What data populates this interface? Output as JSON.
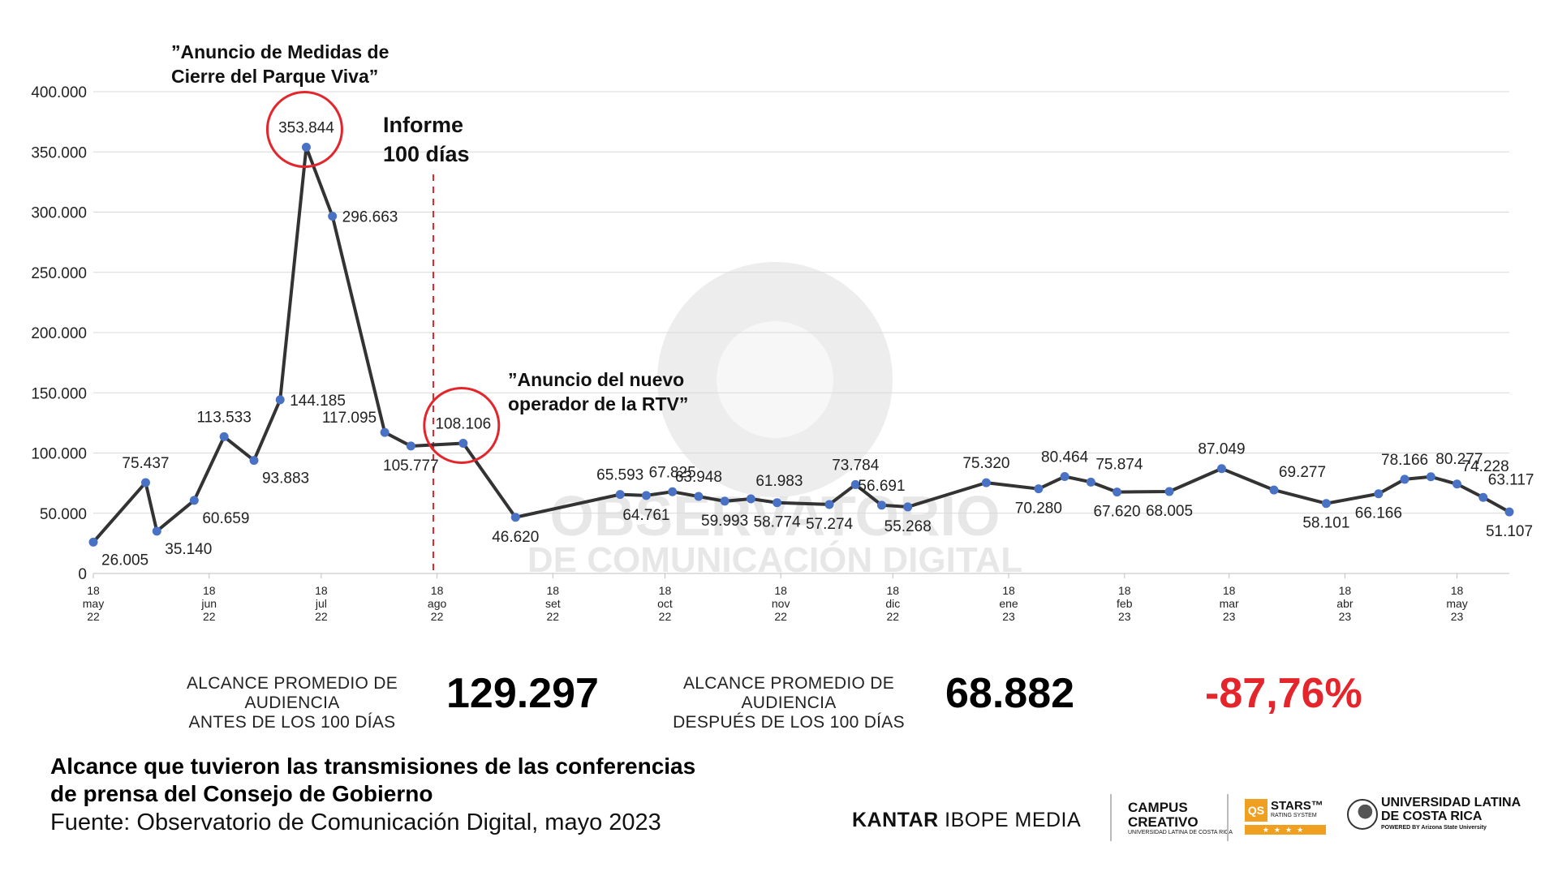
{
  "chart_data": {
    "type": "line",
    "title": "",
    "xlabel": "",
    "ylabel": "",
    "ylim": [
      0,
      400000
    ],
    "y_ticks": [
      "400.000",
      "350.000",
      "300.000",
      "250.000",
      "200.000",
      "150.000",
      "100.000",
      "50.000",
      "0"
    ],
    "x_ticks": [
      {
        "label": [
          "18",
          "may",
          "22"
        ],
        "date": "2022-05-18"
      },
      {
        "label": [
          "18",
          "jun",
          "22"
        ],
        "date": "2022-06-18"
      },
      {
        "label": [
          "18",
          "jul",
          "22"
        ],
        "date": "2022-07-18"
      },
      {
        "label": [
          "18",
          "ago",
          "22"
        ],
        "date": "2022-08-18"
      },
      {
        "label": [
          "18",
          "set",
          "22"
        ],
        "date": "2022-09-18"
      },
      {
        "label": [
          "18",
          "oct",
          "22"
        ],
        "date": "2022-10-18"
      },
      {
        "label": [
          "18",
          "nov",
          "22"
        ],
        "date": "2022-11-18"
      },
      {
        "label": [
          "18",
          "dic",
          "22"
        ],
        "date": "2022-12-18"
      },
      {
        "label": [
          "18",
          "ene",
          "23"
        ],
        "date": "2023-01-18"
      },
      {
        "label": [
          "18",
          "feb",
          "23"
        ],
        "date": "2023-02-18"
      },
      {
        "label": [
          "18",
          "mar",
          "23"
        ],
        "date": "2023-03-18"
      },
      {
        "label": [
          "18",
          "abr",
          "23"
        ],
        "date": "2023-04-18"
      },
      {
        "label": [
          "18",
          "may",
          "23"
        ],
        "date": "2023-05-18"
      }
    ],
    "series": [
      {
        "color": "#333333",
        "marker_color": "#4a72c4",
        "points": [
          {
            "date": "2022-05-18",
            "value": 26005,
            "label": "26.005",
            "label_pos": "below-right"
          },
          {
            "date": "2022-06-01",
            "value": 75437,
            "label": "75.437",
            "label_pos": "above"
          },
          {
            "date": "2022-06-04",
            "value": 35140,
            "label": "35.140",
            "label_pos": "below-right"
          },
          {
            "date": "2022-06-14",
            "value": 60659,
            "label": "60.659",
            "label_pos": "below-right"
          },
          {
            "date": "2022-06-22",
            "value": 113533,
            "label": "113.533",
            "label_pos": "above"
          },
          {
            "date": "2022-06-30",
            "value": 93883,
            "label": "93.883",
            "label_pos": "below-right"
          },
          {
            "date": "2022-07-07",
            "value": 144185,
            "label": "144.185",
            "label_pos": "right"
          },
          {
            "date": "2022-07-14",
            "value": 353844,
            "label": "353.844",
            "label_pos": "above"
          },
          {
            "date": "2022-07-21",
            "value": 296663,
            "label": "296.663",
            "label_pos": "right"
          },
          {
            "date": "2022-08-04",
            "value": 117095,
            "label": "117.095",
            "label_pos": "left"
          },
          {
            "date": "2022-08-11",
            "value": 105777,
            "label": "105.777",
            "label_pos": "below"
          },
          {
            "date": "2022-08-25",
            "value": 108106,
            "label": "108.106",
            "label_pos": "above"
          },
          {
            "date": "2022-09-08",
            "value": 46620,
            "label": "46.620",
            "label_pos": "below"
          },
          {
            "date": "2022-10-06",
            "value": 65593,
            "label": "65.593",
            "label_pos": "above"
          },
          {
            "date": "2022-10-13",
            "value": 64761,
            "label": "64.761",
            "label_pos": "below"
          },
          {
            "date": "2022-10-20",
            "value": 67825,
            "label": "67.825",
            "label_pos": "above"
          },
          {
            "date": "2022-10-27",
            "value": 63948,
            "label": "63.948",
            "label_pos": "above"
          },
          {
            "date": "2022-11-03",
            "value": 59993,
            "label": "59.993",
            "label_pos": "below"
          },
          {
            "date": "2022-11-10",
            "value": 61983,
            "label": "61.983",
            "label_pos": "above-right"
          },
          {
            "date": "2022-11-17",
            "value": 58774,
            "label": "58.774",
            "label_pos": "below"
          },
          {
            "date": "2022-12-01",
            "value": 57274,
            "label": "57.274",
            "label_pos": "below"
          },
          {
            "date": "2022-12-08",
            "value": 73784,
            "label": "73.784",
            "label_pos": "above"
          },
          {
            "date": "2022-12-15",
            "value": 56691,
            "label": "56.691",
            "label_pos": "above"
          },
          {
            "date": "2022-12-22",
            "value": 55268,
            "label": "55.268",
            "label_pos": "below"
          },
          {
            "date": "2023-01-12",
            "value": 75320,
            "label": "75.320",
            "label_pos": "above"
          },
          {
            "date": "2023-01-26",
            "value": 70280,
            "label": "70.280",
            "label_pos": "below"
          },
          {
            "date": "2023-02-02",
            "value": 80464,
            "label": "80.464",
            "label_pos": "above"
          },
          {
            "date": "2023-02-09",
            "value": 75874,
            "label": "75.874",
            "label_pos": "above-right"
          },
          {
            "date": "2023-02-16",
            "value": 67620,
            "label": "67.620",
            "label_pos": "below"
          },
          {
            "date": "2023-03-02",
            "value": 68005,
            "label": "68.005",
            "label_pos": "below"
          },
          {
            "date": "2023-03-16",
            "value": 87049,
            "label": "87.049",
            "label_pos": "above"
          },
          {
            "date": "2023-03-30",
            "value": 69277,
            "label": "69.277",
            "label_pos": "above-right"
          },
          {
            "date": "2023-04-13",
            "value": 58101,
            "label": "58.101",
            "label_pos": "below"
          },
          {
            "date": "2023-04-27",
            "value": 66166,
            "label": "66.166",
            "label_pos": "below"
          },
          {
            "date": "2023-05-04",
            "value": 78166,
            "label": "78.166",
            "label_pos": "above"
          },
          {
            "date": "2023-05-11",
            "value": 80277,
            "label": "80.277",
            "label_pos": "above-right"
          },
          {
            "date": "2023-05-18",
            "value": 74228,
            "label": "74.228",
            "label_pos": "above-right"
          },
          {
            "date": "2023-05-25",
            "value": 63117,
            "label": "63.117",
            "label_pos": "above-right"
          },
          {
            "date": "2023-06-01",
            "value": 51107,
            "label": "51.107",
            "label_pos": "below"
          }
        ]
      }
    ],
    "vertical_marker": {
      "date": "2022-08-17",
      "label_lines": [
        "Informe",
        "100 días"
      ],
      "color": "#e4262c",
      "style": "dashed"
    },
    "annotations": [
      {
        "lines": [
          "”Anuncio de Medidas de",
          "Cierre del Parque Viva”"
        ],
        "target_date": "2022-07-14"
      },
      {
        "lines": [
          "”Anuncio del nuevo",
          "operador de la RTV”"
        ],
        "target_date": "2022-08-25"
      }
    ],
    "highlight_circles": [
      {
        "date": "2022-07-14",
        "value": 353844,
        "color": "#e4262c"
      },
      {
        "date": "2022-08-25",
        "value": 108106,
        "color": "#e4262c"
      }
    ],
    "watermark": {
      "lines": [
        "OBSERVATORIO",
        "DE COMUNICACIÓN DIGITAL"
      ]
    },
    "grid": "horizontal"
  },
  "stats": {
    "before_label_1": "ALCANCE PROMEDIO DE AUDIENCIA",
    "before_label_2": "ANTES DE LOS 100 DÍAS",
    "before_value": "129.297",
    "after_label_1": "ALCANCE PROMEDIO DE AUDIENCIA",
    "after_label_2": "DESPUÉS DE LOS 100 DÍAS",
    "after_value": "68.882",
    "change": "-87,76%"
  },
  "footer": {
    "title_1": "Alcance que tuvieron las transmisiones de las conferencias",
    "title_2": "de prensa del Consejo de Gobierno",
    "source": "Fuente: Observatorio de Comunicación Digital, mayo 2023"
  },
  "logos": {
    "kantar_bold": "KANTAR",
    "kantar_rest": "IBOPE MEDIA",
    "campus_1": "CAMPUS",
    "campus_2": "CREATIVO",
    "campus_sub": "UNIVERSIDAD LATINA DE COSTA RICA",
    "qs_box": "QS",
    "qs_text": "STARS™",
    "qs_sub": "RATING SYSTEM",
    "qs_stars": "★★★★",
    "ulat_1": "UNIVERSIDAD LATINA",
    "ulat_2": "DE COSTA RICA",
    "ulat_sub": "POWERED BY Arizona State University"
  }
}
